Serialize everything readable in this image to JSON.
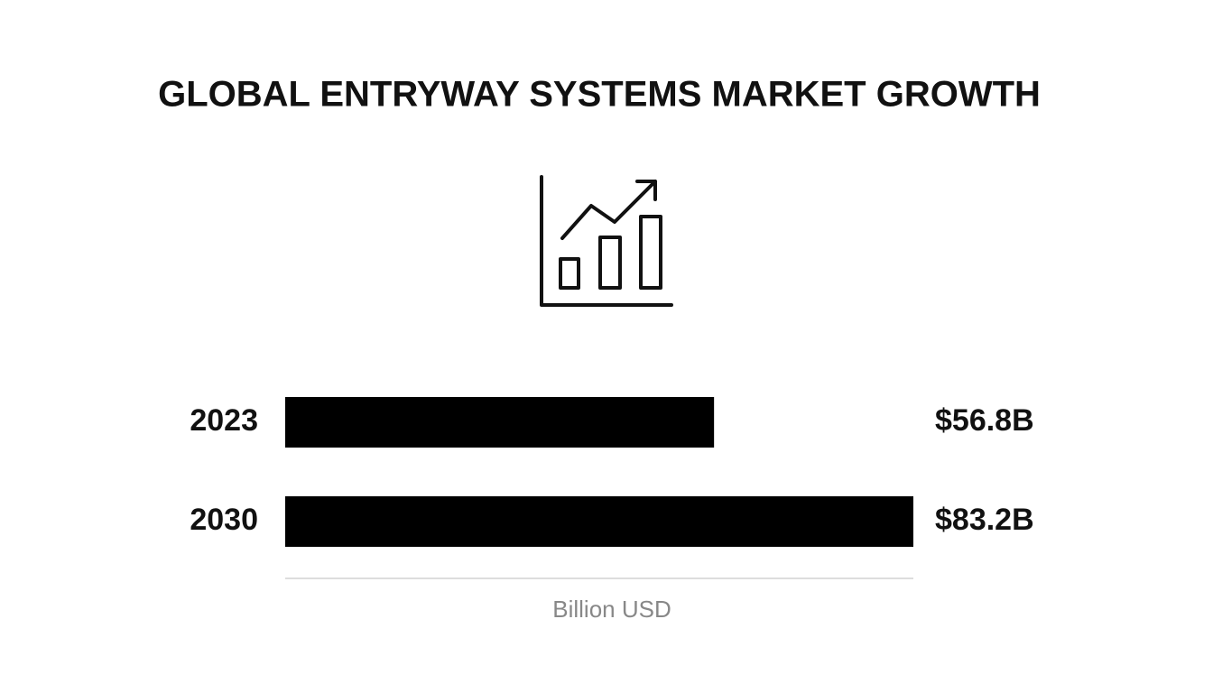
{
  "chart_data": {
    "type": "bar",
    "orientation": "horizontal",
    "title": "GLOBAL ENTRYWAY SYSTEMS MARKET GROWTH",
    "categories": [
      "2023",
      "2030"
    ],
    "values": [
      56.8,
      83.2
    ],
    "value_labels": [
      "$56.8B",
      "$83.2B"
    ],
    "color": "#000000",
    "xlabel": "Billion USD"
  }
}
